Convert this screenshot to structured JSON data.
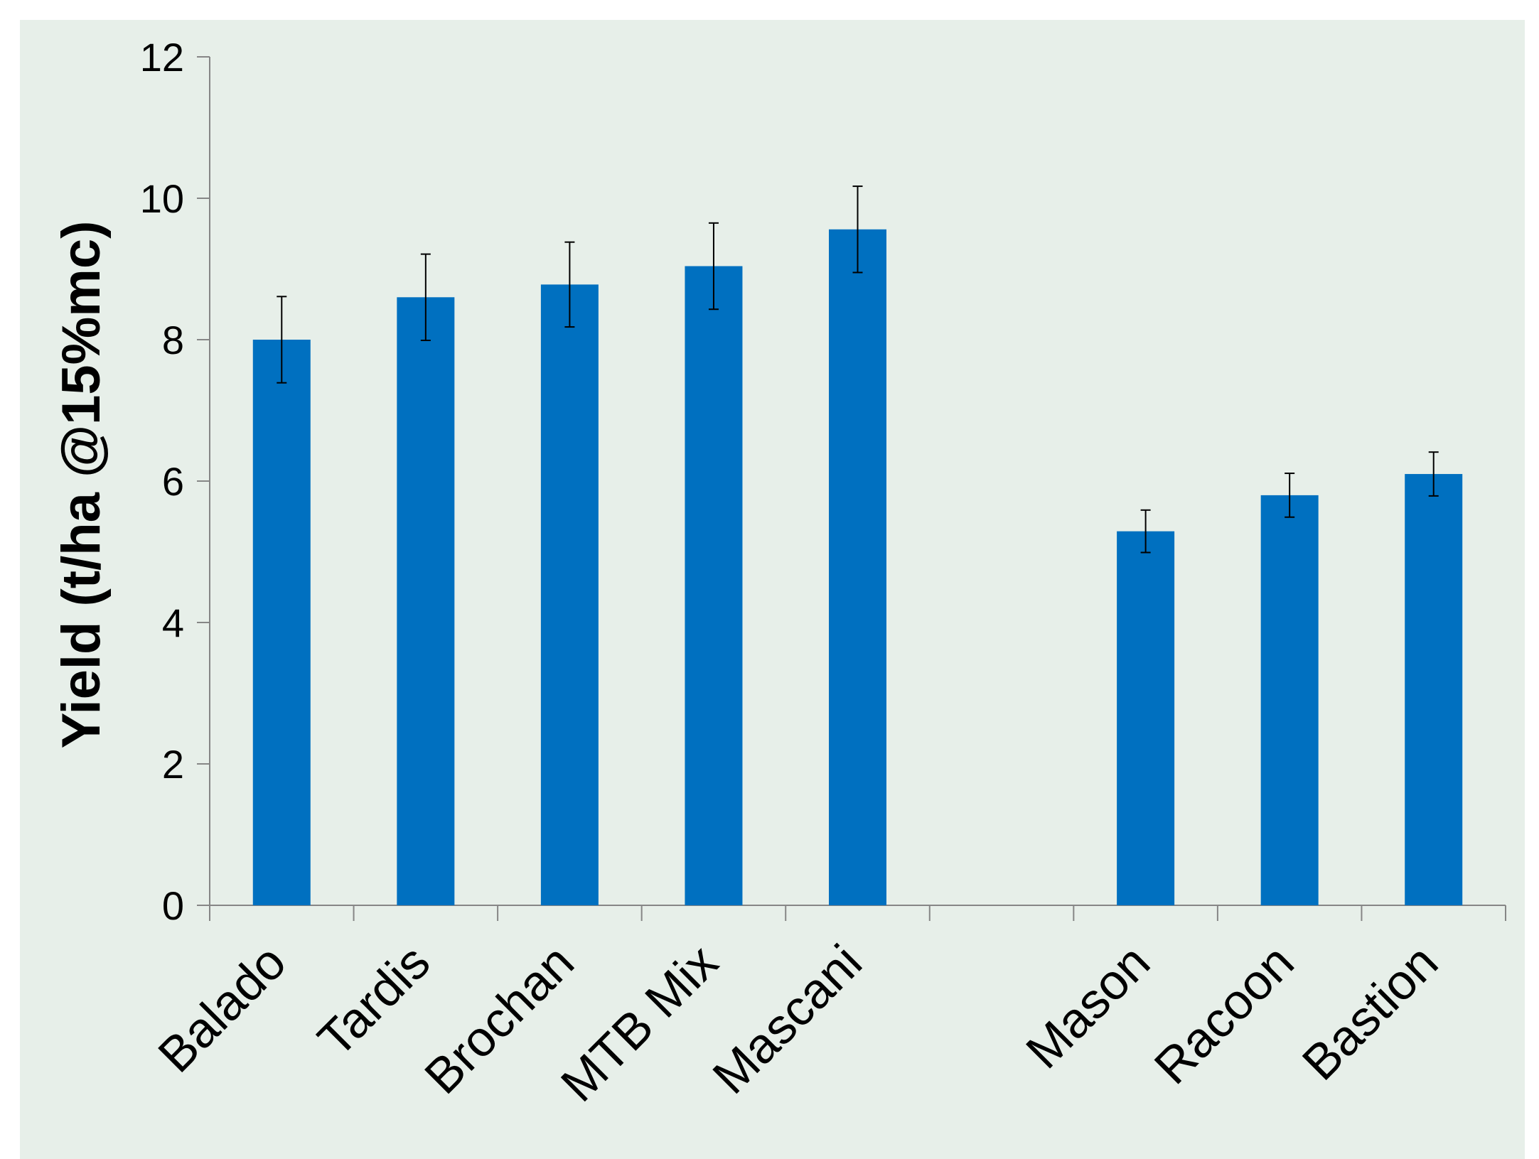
{
  "chart_data": {
    "type": "bar",
    "title": "",
    "xlabel": "",
    "ylabel": "Yield (t/ha @15%mc)",
    "ylim": [
      0,
      12
    ],
    "yticks": [
      0,
      2,
      4,
      6,
      8,
      10,
      12
    ],
    "categories": [
      "Balado",
      "Tardis",
      "Brochan",
      "MTB Mix",
      "Mascani",
      "",
      "Mason",
      "Racoon",
      "Bastion"
    ],
    "values": [
      8.0,
      8.6,
      8.78,
      9.04,
      9.56,
      null,
      5.29,
      5.8,
      6.1
    ],
    "error_bars": [
      0.61,
      0.61,
      0.6,
      0.61,
      0.61,
      null,
      0.3,
      0.31,
      0.31
    ],
    "grid": false,
    "legend": "none",
    "colors": {
      "bar": "#0070c0",
      "background": "#e7efe9",
      "axis": "#868686",
      "error": "#000000"
    }
  }
}
